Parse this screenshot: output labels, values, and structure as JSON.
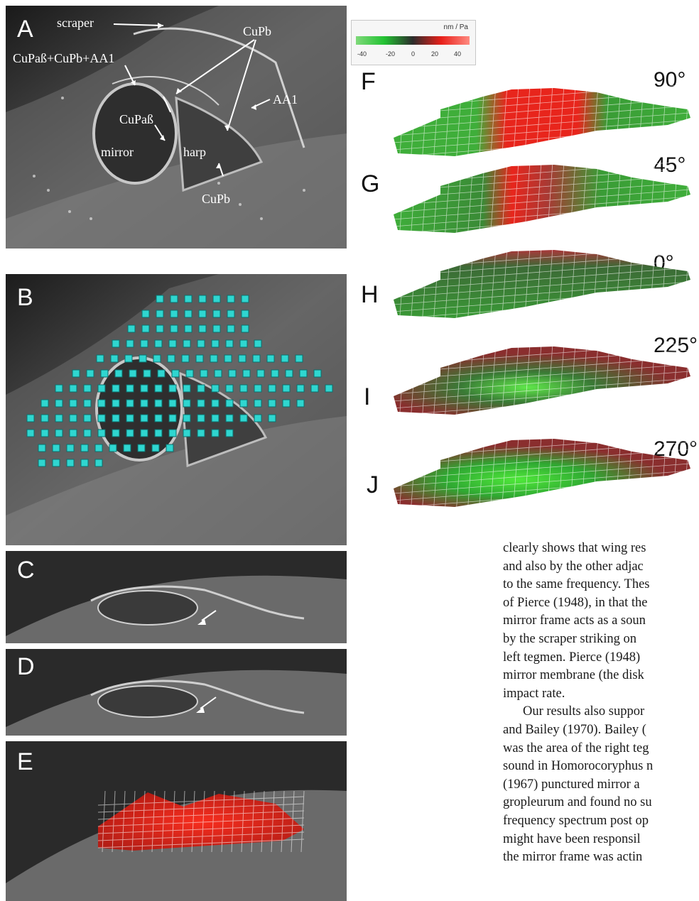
{
  "figure": {
    "panel_labels": {
      "A": "A",
      "B": "B",
      "C": "C",
      "D": "D",
      "E": "E",
      "F": "F",
      "G": "G",
      "H": "H",
      "I": "I",
      "J": "J"
    },
    "panel_a_annotations": {
      "scraper": "scraper",
      "cupab_cupb_aa1": "CuPaß+CuPb+AA1",
      "cupb_top": "CuPb",
      "aa1": "AA1",
      "cupab": "CuPaß",
      "mirror": "mirror",
      "harp": "harp",
      "cupb_bottom": "CuPb"
    },
    "colorbar": {
      "unit": "nm / Pa",
      "ticks": [
        "-40",
        "-20",
        "0",
        "20",
        "40"
      ],
      "colors": {
        "negative": "#22c232",
        "zero": "#2c2c2c",
        "positive": "#e8201a"
      }
    },
    "phase_angles": {
      "F": "90°",
      "G": "45°",
      "H": "0°",
      "I": "225°",
      "J": "270°"
    }
  },
  "body_text": {
    "lines": [
      "clearly shows that wing res",
      "and also by the other adjac",
      "to the same frequency. Thes",
      "of Pierce (1948), in that the",
      "mirror frame acts as a soun",
      "by the scraper striking on",
      "left tegmen. Pierce (1948)",
      "mirror membrane (the disk",
      "impact rate.",
      "Our results also suppor",
      "and Bailey (1970). Bailey (",
      "was the area of the right teg",
      "sound in Homorocoryphus n",
      "(1967) punctured mirror a",
      "gropleurum and found no su",
      "frequency spectrum post op",
      "might have been responsil",
      "the mirror frame was actin"
    ]
  }
}
